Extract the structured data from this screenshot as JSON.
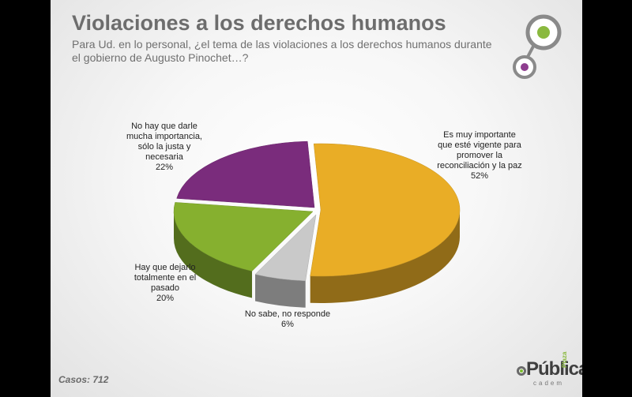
{
  "header": {
    "title": "Violaciones a los derechos humanos",
    "subtitle": "Para Ud. en lo personal, ¿el tema de las violaciones a los derechos humanos durante el gobierno de Augusto Pinochet…?"
  },
  "footer": {
    "casos": "Casos: 712"
  },
  "brand": {
    "name": "Pública",
    "plaza": "Plaza",
    "cadem": "cadem"
  },
  "colors": {
    "yellow": "#e9ad26",
    "purple": "#7a2c7c",
    "green": "#86b02f",
    "gray": "#c9c9c9",
    "logo_green": "#8ab93f",
    "logo_purple": "#8e3d8f"
  },
  "chart_data": {
    "type": "pie",
    "title": "",
    "slices": [
      {
        "label_lines": [
          "Es muy importante",
          "que esté vigente para",
          "promover la",
          "reconciliación y la paz"
        ],
        "value": 52,
        "value_label": "52%"
      },
      {
        "label_lines": [
          "No sabe, no responde"
        ],
        "value": 6,
        "value_label": "6%"
      },
      {
        "label_lines": [
          "Hay que dejarlo",
          "totalmente en el",
          "pasado"
        ],
        "value": 20,
        "value_label": "20%"
      },
      {
        "label_lines": [
          "No hay que darle",
          "mucha importancia,",
          "sólo la justa y",
          "necesaria"
        ],
        "value": 22,
        "value_label": "22%"
      }
    ]
  }
}
